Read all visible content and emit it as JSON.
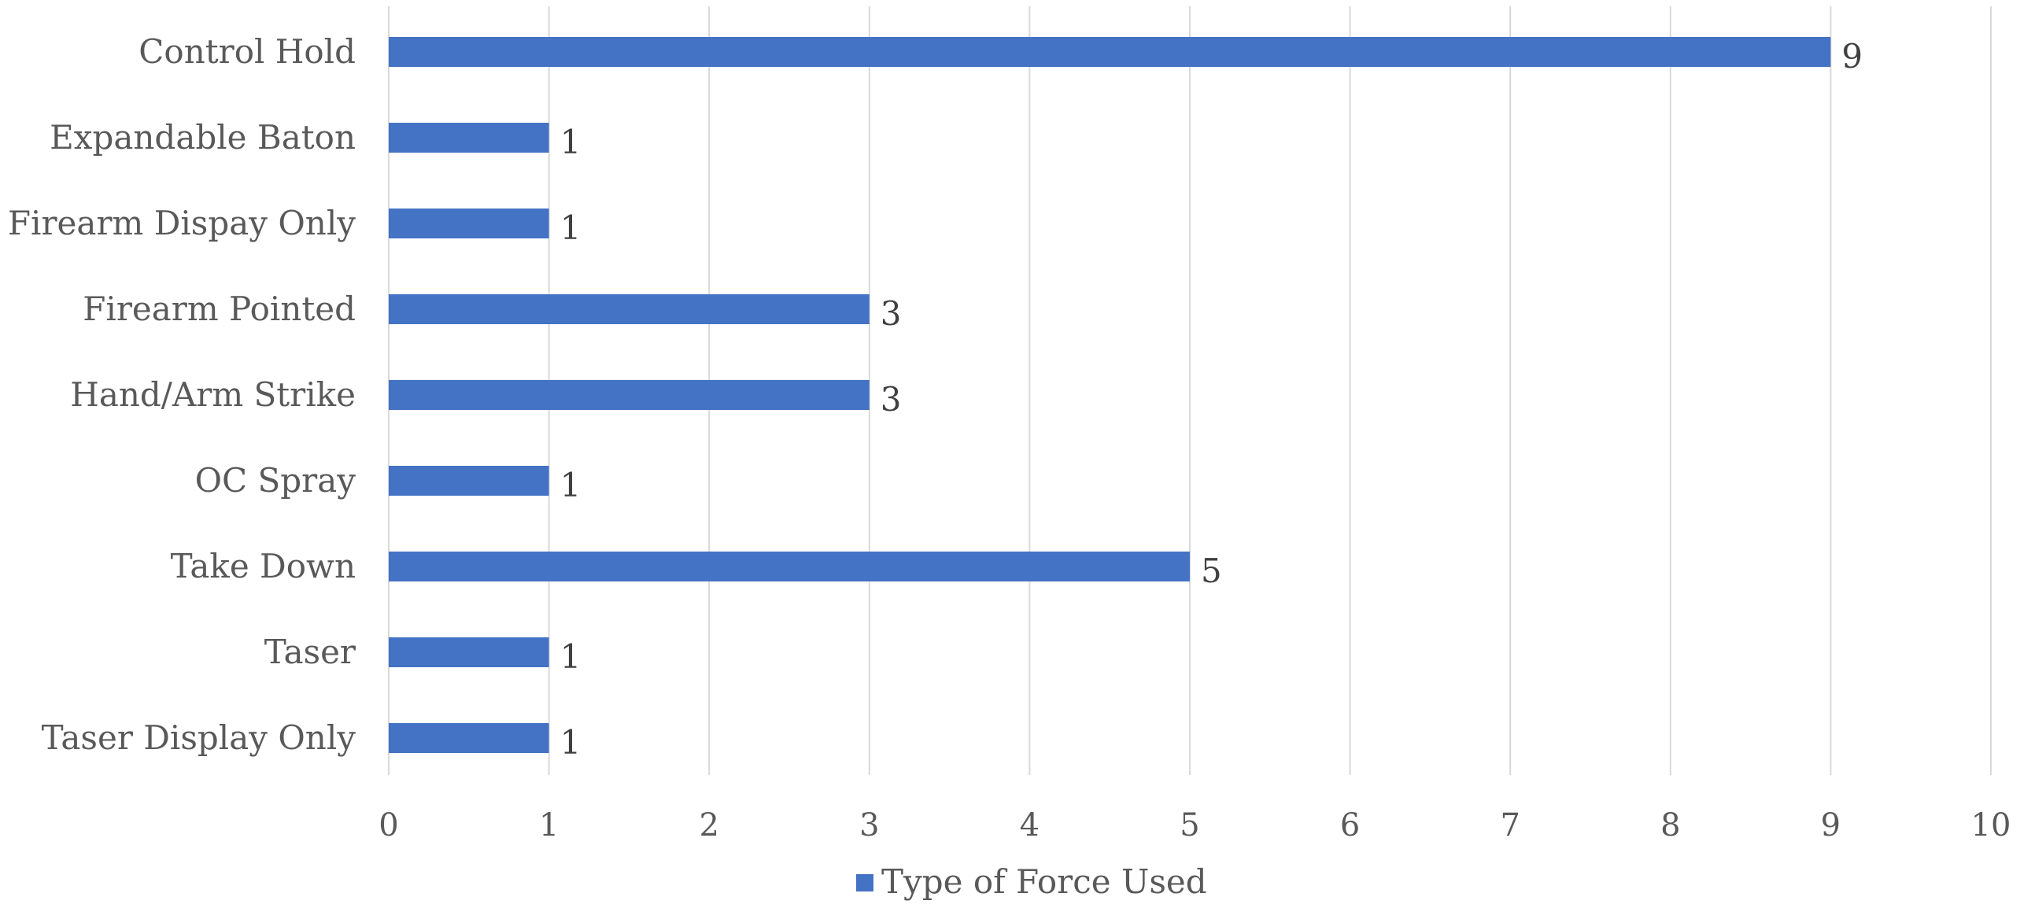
{
  "chart_data": {
    "type": "bar",
    "orientation": "horizontal",
    "categories": [
      "Control Hold",
      "Expandable Baton",
      "Firearm Dispay Only",
      "Firearm Pointed",
      "Hand/Arm Strike",
      "OC Spray",
      "Take Down",
      "Taser",
      "Taser Display Only"
    ],
    "series": [
      {
        "name": "Type of Force Used",
        "color": "#4472C4",
        "values": [
          9,
          1,
          1,
          3,
          3,
          1,
          5,
          1,
          1
        ]
      }
    ],
    "xlim": [
      0,
      10
    ],
    "x_ticks": [
      "0",
      "1",
      "2",
      "3",
      "4",
      "5",
      "6",
      "7",
      "8",
      "9",
      "10"
    ],
    "grid": "vertical",
    "data_labels": true,
    "legend_position": "bottom",
    "title": "",
    "xlabel": "",
    "ylabel": ""
  }
}
